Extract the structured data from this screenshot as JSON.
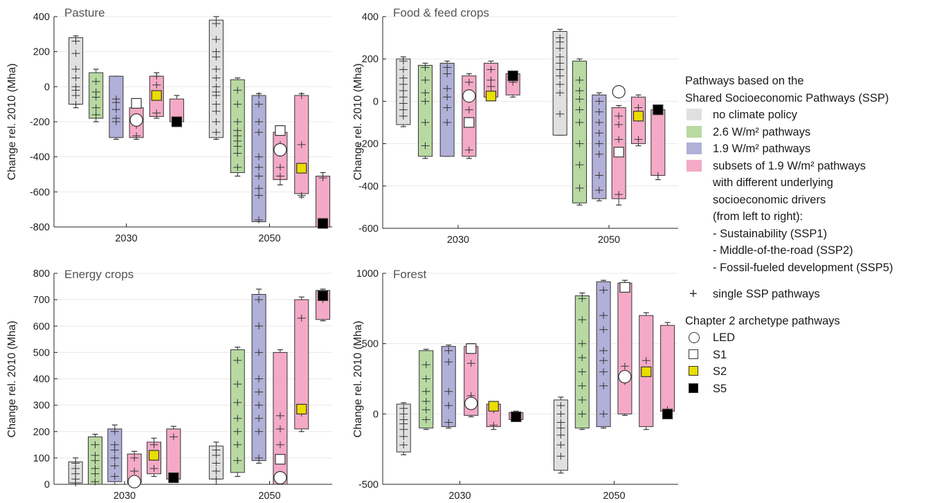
{
  "colors": {
    "noPolicy": "#e0e0e0",
    "w26": "#b8d9a2",
    "w19": "#b1b0d8",
    "ssp": "#f4aac6",
    "S2": "#e8de00",
    "S5": "#000000"
  },
  "legend": {
    "title_line1": "Pathways based on the",
    "title_line2": "Shared Socioeconomic Pathways (SSP)",
    "no_policy": "no climate policy",
    "w26": "2.6 W/m² pathways",
    "w19": "1.9 W/m² pathways",
    "subset_lines": [
      "subsets of 1.9 W/m² pathways",
      "with different underlying",
      "socioeconomic drivers",
      "(from left to right):",
      "- Sustainability (SSP1)",
      "- Middle-of-the-road (SSP2)",
      "- Fossil-fueled development (SSP5)"
    ],
    "single": "single SSP pathways",
    "archetype_title": "Chapter 2 archetype pathways",
    "LED": "LED",
    "S1": "S1",
    "S2": "S2",
    "S5": "S5"
  },
  "chart_data": [
    {
      "type": "box",
      "title": "Pasture",
      "ylabel": "Change rel. 2010 (Mha)",
      "ylim": [
        -800,
        400
      ],
      "yticks": [
        -800,
        -600,
        -400,
        -200,
        0,
        200,
        400
      ],
      "groups": [
        "2030",
        "2050"
      ],
      "series": [
        "no climate policy",
        "2.6 W/m² pathways",
        "1.9 W/m² pathways",
        "SSP1",
        "SSP2",
        "SSP5"
      ],
      "boxes": [
        [
          [
            -120,
            290,
            -100,
            280
          ],
          [
            -200,
            100,
            -180,
            80
          ],
          [
            -300,
            60,
            -290,
            60
          ],
          [
            -300,
            -80,
            -290,
            -120
          ],
          [
            -180,
            80,
            -170,
            60
          ],
          [
            -210,
            -50,
            -200,
            -70
          ]
        ],
        [
          [
            -300,
            400,
            -290,
            380
          ],
          [
            -510,
            50,
            -490,
            40
          ],
          [
            -770,
            -40,
            -770,
            -50
          ],
          [
            -560,
            -240,
            -530,
            -260
          ],
          [
            -630,
            -40,
            -610,
            -50
          ],
          [
            -800,
            -490,
            -800,
            -510
          ]
        ]
      ],
      "pluses": [
        [
          [
            -100,
            -50,
            -20,
            0,
            50,
            100,
            190,
            260
          ],
          [
            -160,
            -120,
            -60,
            -30,
            30
          ],
          [
            -200,
            -180,
            -130,
            -90,
            -70
          ],
          [
            -280,
            -220,
            -180
          ],
          [
            -150,
            -60,
            10,
            60
          ],
          [
            -200
          ]
        ],
        [
          [
            -260,
            -200,
            -140,
            -100,
            -50,
            -30,
            0,
            50,
            100,
            170,
            200,
            270,
            360
          ],
          [
            -460,
            -380,
            -340,
            -310,
            -280,
            -250,
            -200,
            -100,
            -20
          ],
          [
            -760,
            -620,
            -580,
            -510,
            -460,
            -400,
            -260,
            -200,
            -100,
            -50
          ],
          [
            -510,
            -460,
            -380,
            -330,
            -260
          ],
          [
            -620,
            -460,
            -330,
            -50
          ],
          [
            -770,
            -520
          ]
        ]
      ],
      "archetypes": [
        {
          "group": 0,
          "slot": 3,
          "type": "LED",
          "value": -190
        },
        {
          "group": 0,
          "slot": 3,
          "type": "S1",
          "value": -95
        },
        {
          "group": 0,
          "slot": 4,
          "type": "S2",
          "value": -50
        },
        {
          "group": 0,
          "slot": 5,
          "type": "S5",
          "value": -200
        },
        {
          "group": 1,
          "slot": 3,
          "type": "LED",
          "value": -360
        },
        {
          "group": 1,
          "slot": 3,
          "type": "S1",
          "value": -250
        },
        {
          "group": 1,
          "slot": 4,
          "type": "S2",
          "value": -465
        },
        {
          "group": 1,
          "slot": 5,
          "type": "S5",
          "value": -780
        }
      ]
    },
    {
      "type": "box",
      "title": "Food & feed crops",
      "ylabel": "Change rel. 2010 (Mha)",
      "ylim": [
        -600,
        400
      ],
      "yticks": [
        -600,
        -400,
        -200,
        0,
        200,
        400
      ],
      "groups": [
        "2030",
        "2050"
      ],
      "series": [
        "no climate policy",
        "2.6 W/m² pathways",
        "1.9 W/m² pathways",
        "SSP1",
        "SSP2",
        "SSP5"
      ],
      "boxes": [
        [
          [
            -120,
            210,
            -110,
            200
          ],
          [
            -270,
            180,
            -260,
            170
          ],
          [
            -260,
            190,
            -260,
            180
          ],
          [
            -270,
            130,
            -260,
            120
          ],
          [
            10,
            190,
            20,
            180
          ],
          [
            20,
            140,
            30,
            130
          ]
        ],
        [
          [
            -160,
            340,
            -160,
            330
          ],
          [
            -490,
            200,
            -480,
            190
          ],
          [
            -470,
            40,
            -460,
            30
          ],
          [
            -490,
            -20,
            -460,
            -30
          ],
          [
            -210,
            30,
            -200,
            20
          ],
          [
            -370,
            -30,
            -350,
            -40
          ]
        ]
      ],
      "pluses": [
        [
          [
            -70,
            -40,
            -10,
            20,
            50,
            80,
            110,
            150,
            190
          ],
          [
            -210,
            -100,
            0,
            40,
            100,
            160
          ],
          [
            -100,
            -30,
            20,
            60,
            130,
            160
          ],
          [
            -230,
            -90,
            -40,
            10,
            90
          ],
          [
            40,
            70,
            100,
            150
          ],
          [
            90,
            110
          ]
        ],
        [
          [
            -60,
            40,
            80,
            120,
            150,
            180,
            210,
            250,
            280,
            300
          ],
          [
            -410,
            -300,
            -200,
            -100,
            -40,
            10,
            50,
            100
          ],
          [
            -420,
            -350,
            -250,
            -200,
            -150,
            -100,
            -50,
            0
          ],
          [
            -440,
            -180,
            -110,
            -70
          ],
          [
            -180,
            -80,
            -30
          ],
          [
            -350,
            -50
          ]
        ]
      ],
      "archetypes": [
        {
          "group": 0,
          "slot": 3,
          "type": "LED",
          "value": 25
        },
        {
          "group": 0,
          "slot": 3,
          "type": "S1",
          "value": -100
        },
        {
          "group": 0,
          "slot": 4,
          "type": "S2",
          "value": 25
        },
        {
          "group": 0,
          "slot": 5,
          "type": "S5",
          "value": 120
        },
        {
          "group": 1,
          "slot": 3,
          "type": "LED",
          "value": 45
        },
        {
          "group": 1,
          "slot": 3,
          "type": "S1",
          "value": -240
        },
        {
          "group": 1,
          "slot": 4,
          "type": "S2",
          "value": -70
        },
        {
          "group": 1,
          "slot": 5,
          "type": "S5",
          "value": -40
        }
      ]
    },
    {
      "type": "box",
      "title": "Energy crops",
      "ylabel": "Change rel. 2010 (Mha)",
      "ylim": [
        0,
        800
      ],
      "yticks": [
        0,
        100,
        200,
        300,
        400,
        500,
        600,
        700,
        800
      ],
      "groups": [
        "2030",
        "2050"
      ],
      "series": [
        "no climate policy",
        "2.6 W/m² pathways",
        "1.9 W/m² pathways",
        "SSP1",
        "SSP2",
        "SSP5"
      ],
      "boxes": [
        [
          [
            0,
            100,
            5,
            85
          ],
          [
            0,
            190,
            0,
            180
          ],
          [
            0,
            225,
            10,
            210
          ],
          [
            0,
            125,
            5,
            115
          ],
          [
            30,
            175,
            40,
            160
          ],
          [
            10,
            220,
            20,
            210
          ]
        ],
        [
          [
            0,
            160,
            20,
            145
          ],
          [
            30,
            520,
            45,
            510
          ],
          [
            80,
            740,
            90,
            720
          ],
          [
            0,
            510,
            0,
            500
          ],
          [
            200,
            710,
            210,
            700
          ],
          [
            620,
            740,
            625,
            735
          ]
        ]
      ],
      "pluses": [
        [
          [
            5,
            20,
            40,
            60,
            80
          ],
          [
            10,
            40,
            60,
            90,
            110,
            150
          ],
          [
            30,
            70,
            100,
            130,
            150,
            200
          ],
          [
            20,
            50,
            100
          ],
          [
            60,
            110,
            150
          ],
          [
            30,
            180
          ]
        ],
        [
          [
            20,
            50,
            80,
            110,
            130
          ],
          [
            90,
            150,
            200,
            250,
            310,
            380,
            470
          ],
          [
            100,
            200,
            250,
            300,
            350,
            400,
            500,
            600,
            700
          ],
          [
            150,
            210,
            260
          ],
          [
            270,
            630
          ],
          [
            700
          ]
        ]
      ],
      "archetypes": [
        {
          "group": 0,
          "slot": 3,
          "type": "LED",
          "value": 10
        },
        {
          "group": 0,
          "slot": 4,
          "type": "S2",
          "value": 110
        },
        {
          "group": 0,
          "slot": 5,
          "type": "S5",
          "value": 25
        },
        {
          "group": 1,
          "slot": 3,
          "type": "LED",
          "value": 25
        },
        {
          "group": 1,
          "slot": 3,
          "type": "S1",
          "value": 95
        },
        {
          "group": 1,
          "slot": 4,
          "type": "S2",
          "value": 285
        },
        {
          "group": 1,
          "slot": 5,
          "type": "S5",
          "value": 715
        }
      ]
    },
    {
      "type": "box",
      "title": "Forest",
      "ylabel": "Change rel. 2010 (Mha)",
      "ylim": [
        -500,
        1000
      ],
      "yticks": [
        -500,
        0,
        500,
        1000
      ],
      "groups": [
        "2030",
        "2050"
      ],
      "series": [
        "no climate policy",
        "2.6 W/m² pathways",
        "1.9 W/m² pathways",
        "SSP1",
        "SSP2",
        "SSP5"
      ],
      "boxes": [
        [
          [
            -290,
            80,
            -270,
            70
          ],
          [
            -110,
            460,
            -100,
            450
          ],
          [
            -100,
            490,
            -90,
            480
          ],
          [
            -20,
            500,
            -10,
            480
          ],
          [
            -110,
            80,
            -90,
            70
          ],
          [
            -50,
            20,
            -40,
            10
          ]
        ],
        [
          [
            -420,
            120,
            -400,
            100
          ],
          [
            -110,
            860,
            -100,
            840
          ],
          [
            -100,
            950,
            -90,
            940
          ],
          [
            -10,
            950,
            0,
            930
          ],
          [
            -110,
            720,
            -90,
            700
          ],
          [
            10,
            650,
            20,
            630
          ]
        ]
      ],
      "pluses": [
        [
          [
            -220,
            -160,
            -110,
            -70,
            -40,
            0,
            40
          ],
          [
            -40,
            30,
            90,
            160,
            250,
            350
          ],
          [
            -60,
            60,
            160,
            370,
            450
          ],
          [
            130,
            360
          ],
          [
            -80,
            30
          ],
          [
            -30
          ]
        ],
        [
          [
            -300,
            -220,
            -150,
            -100,
            -60,
            0,
            60
          ],
          [
            0,
            100,
            200,
            300,
            400,
            500,
            670,
            820
          ],
          [
            0,
            200,
            300,
            380,
            450,
            600,
            700,
            880
          ],
          [
            230,
            340,
            900
          ],
          [
            380
          ],
          [
            30
          ]
        ]
      ],
      "archetypes": [
        {
          "group": 0,
          "slot": 3,
          "type": "LED",
          "value": 75
        },
        {
          "group": 0,
          "slot": 3,
          "type": "S1",
          "value": 465
        },
        {
          "group": 0,
          "slot": 4,
          "type": "S2",
          "value": 55
        },
        {
          "group": 0,
          "slot": 5,
          "type": "S5",
          "value": -20
        },
        {
          "group": 1,
          "slot": 3,
          "type": "LED",
          "value": 265
        },
        {
          "group": 1,
          "slot": 3,
          "type": "S1",
          "value": 900
        },
        {
          "group": 1,
          "slot": 4,
          "type": "S2",
          "value": 300
        },
        {
          "group": 1,
          "slot": 5,
          "type": "S5",
          "value": 0
        }
      ]
    }
  ]
}
